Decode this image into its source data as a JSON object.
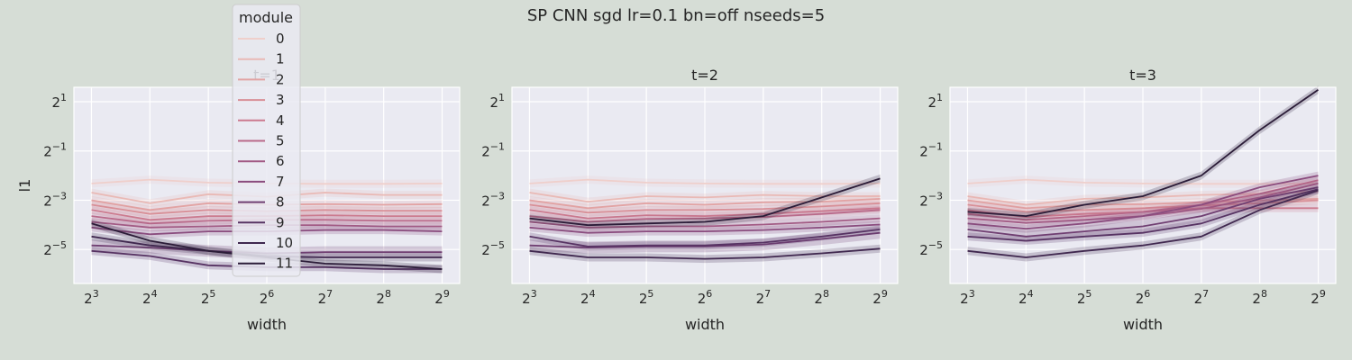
{
  "figure": {
    "suptitle": "SP CNN sgd lr=0.1 bn=off nseeds=5"
  },
  "legend": {
    "title": "module",
    "entries": [
      "0",
      "1",
      "2",
      "3",
      "4",
      "5",
      "6",
      "7",
      "8",
      "9",
      "10",
      "11"
    ]
  },
  "colors": {
    "series": [
      "#efcfcb",
      "#e9b9b5",
      "#e2a3a3",
      "#d88f97",
      "#cc7b8f",
      "#b96a8a",
      "#a25a84",
      "#8a4c7e",
      "#703f72",
      "#573363",
      "#40284f",
      "#2b1c38"
    ],
    "axes_background": "#eaeaf2",
    "grid": "#ffffff",
    "figure_background": "#d6ddd6"
  },
  "chart_data": [
    {
      "type": "line",
      "title": "t=1",
      "xlabel": "width",
      "ylabel": "l1",
      "x": [
        8,
        16,
        32,
        64,
        128,
        256,
        512
      ],
      "x_tick_labels": [
        "2^3",
        "2^4",
        "2^5",
        "2^6",
        "2^7",
        "2^8",
        "2^9"
      ],
      "y_tick_labels": [
        "2^1",
        "2^-1",
        "2^-3",
        "2^-5"
      ],
      "y_tick_exponents": [
        1,
        -1,
        -3,
        -5
      ],
      "log_base": 2,
      "ylim": [
        0.012,
        3.0
      ],
      "grid": true,
      "series": [
        {
          "name": "0",
          "values": [
            0.2,
            0.223,
            0.205,
            0.2,
            0.198,
            0.198,
            0.2
          ]
        },
        {
          "name": "1",
          "values": [
            0.155,
            0.115,
            0.148,
            0.138,
            0.155,
            0.145,
            0.145
          ]
        },
        {
          "name": "2",
          "values": [
            0.125,
            0.095,
            0.115,
            0.11,
            0.112,
            0.11,
            0.112
          ]
        },
        {
          "name": "3",
          "values": [
            0.11,
            0.085,
            0.095,
            0.092,
            0.095,
            0.093,
            0.093
          ]
        },
        {
          "name": "4",
          "values": [
            0.095,
            0.072,
            0.08,
            0.08,
            0.082,
            0.08,
            0.08
          ]
        },
        {
          "name": "5",
          "values": [
            0.08,
            0.065,
            0.07,
            0.072,
            0.072,
            0.07,
            0.07
          ]
        },
        {
          "name": "6",
          "values": [
            0.068,
            0.058,
            0.06,
            0.062,
            0.062,
            0.06,
            0.06
          ]
        },
        {
          "name": "7",
          "values": [
            0.058,
            0.048,
            0.052,
            0.052,
            0.054,
            0.054,
            0.052
          ]
        },
        {
          "name": "8",
          "values": [
            0.035,
            0.033,
            0.03,
            0.028,
            0.029,
            0.029,
            0.029
          ]
        },
        {
          "name": "9",
          "values": [
            0.03,
            0.026,
            0.02,
            0.019,
            0.019,
            0.018,
            0.018
          ]
        },
        {
          "name": "10",
          "values": [
            0.045,
            0.035,
            0.03,
            0.026,
            0.025,
            0.025,
            0.025
          ]
        },
        {
          "name": "11",
          "values": [
            0.065,
            0.04,
            0.03,
            0.025,
            0.021,
            0.02,
            0.018
          ]
        }
      ]
    },
    {
      "type": "line",
      "title": "t=2",
      "xlabel": "width",
      "ylabel": "",
      "x": [
        8,
        16,
        32,
        64,
        128,
        256,
        512
      ],
      "x_tick_labels": [
        "2^3",
        "2^4",
        "2^5",
        "2^6",
        "2^7",
        "2^8",
        "2^9"
      ],
      "y_tick_labels": [
        "2^1",
        "2^-1",
        "2^-3",
        "2^-5"
      ],
      "y_tick_exponents": [
        1,
        -1,
        -3,
        -5
      ],
      "log_base": 2,
      "ylim": [
        0.012,
        3.0
      ],
      "grid": true,
      "series": [
        {
          "name": "0",
          "values": [
            0.2,
            0.223,
            0.205,
            0.2,
            0.198,
            0.198,
            0.2
          ]
        },
        {
          "name": "1",
          "values": [
            0.155,
            0.12,
            0.14,
            0.135,
            0.145,
            0.14,
            0.14
          ]
        },
        {
          "name": "2",
          "values": [
            0.125,
            0.1,
            0.115,
            0.11,
            0.118,
            0.12,
            0.13
          ]
        },
        {
          "name": "3",
          "values": [
            0.11,
            0.088,
            0.095,
            0.095,
            0.098,
            0.105,
            0.115
          ]
        },
        {
          "name": "4",
          "values": [
            0.095,
            0.075,
            0.082,
            0.08,
            0.085,
            0.092,
            0.1
          ]
        },
        {
          "name": "5",
          "values": [
            0.08,
            0.068,
            0.074,
            0.075,
            0.078,
            0.085,
            0.095
          ]
        },
        {
          "name": "6",
          "values": [
            0.068,
            0.058,
            0.06,
            0.06,
            0.063,
            0.068,
            0.075
          ]
        },
        {
          "name": "7",
          "values": [
            0.058,
            0.05,
            0.052,
            0.052,
            0.054,
            0.058,
            0.063
          ]
        },
        {
          "name": "8",
          "values": [
            0.035,
            0.033,
            0.034,
            0.034,
            0.036,
            0.042,
            0.05
          ]
        },
        {
          "name": "9",
          "values": [
            0.045,
            0.034,
            0.035,
            0.035,
            0.038,
            0.045,
            0.055
          ]
        },
        {
          "name": "10",
          "values": [
            0.03,
            0.025,
            0.025,
            0.024,
            0.025,
            0.028,
            0.032
          ]
        },
        {
          "name": "11",
          "values": [
            0.075,
            0.062,
            0.065,
            0.068,
            0.08,
            0.135,
            0.23
          ]
        }
      ]
    },
    {
      "type": "line",
      "title": "t=3",
      "xlabel": "width",
      "ylabel": "",
      "x": [
        8,
        16,
        32,
        64,
        128,
        256,
        512
      ],
      "x_tick_labels": [
        "2^3",
        "2^4",
        "2^5",
        "2^6",
        "2^7",
        "2^8",
        "2^9"
      ],
      "y_tick_labels": [
        "2^1",
        "2^-1",
        "2^-3",
        "2^-5"
      ],
      "y_tick_exponents": [
        1,
        -1,
        -3,
        -5
      ],
      "log_base": 2,
      "ylim": [
        0.012,
        3.0
      ],
      "grid": true,
      "series": [
        {
          "name": "0",
          "values": [
            0.2,
            0.223,
            0.205,
            0.2,
            0.198,
            0.198,
            0.2
          ]
        },
        {
          "name": "1",
          "values": [
            0.14,
            0.11,
            0.13,
            0.135,
            0.145,
            0.15,
            0.16
          ]
        },
        {
          "name": "2",
          "values": [
            0.125,
            0.1,
            0.11,
            0.112,
            0.118,
            0.124,
            0.13
          ]
        },
        {
          "name": "3",
          "values": [
            0.11,
            0.09,
            0.095,
            0.1,
            0.108,
            0.115,
            0.125
          ]
        },
        {
          "name": "4",
          "values": [
            0.095,
            0.078,
            0.085,
            0.09,
            0.1,
            0.1,
            0.1
          ]
        },
        {
          "name": "5",
          "values": [
            0.085,
            0.072,
            0.08,
            0.09,
            0.11,
            0.15,
            0.22
          ]
        },
        {
          "name": "6",
          "values": [
            0.075,
            0.066,
            0.072,
            0.08,
            0.098,
            0.135,
            0.2
          ]
        },
        {
          "name": "7",
          "values": [
            0.065,
            0.056,
            0.065,
            0.08,
            0.11,
            0.18,
            0.25
          ]
        },
        {
          "name": "8",
          "values": [
            0.055,
            0.045,
            0.052,
            0.06,
            0.08,
            0.13,
            0.18
          ]
        },
        {
          "name": "9",
          "values": [
            0.045,
            0.04,
            0.045,
            0.05,
            0.065,
            0.11,
            0.17
          ]
        },
        {
          "name": "10",
          "values": [
            0.03,
            0.025,
            0.03,
            0.035,
            0.045,
            0.095,
            0.165
          ]
        },
        {
          "name": "11",
          "values": [
            0.09,
            0.08,
            0.11,
            0.14,
            0.25,
            0.9,
            2.8
          ]
        }
      ]
    }
  ]
}
